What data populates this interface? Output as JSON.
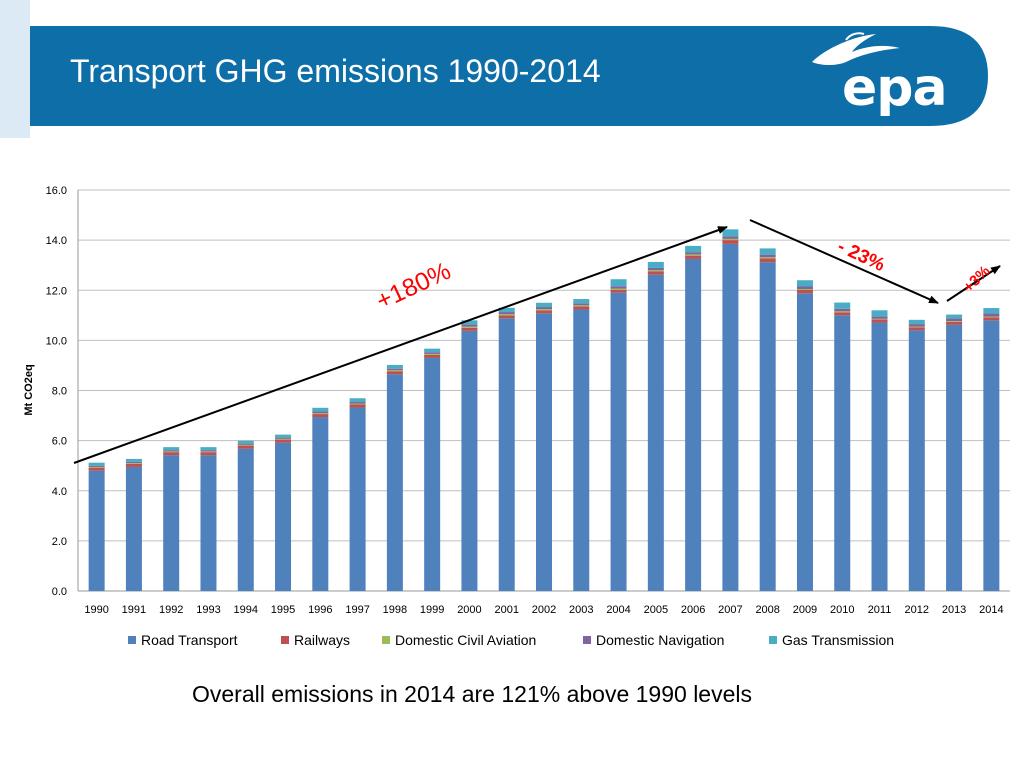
{
  "slide": {
    "title": "Transport GHG emissions 1990-2014",
    "logo_text": "epa",
    "footer_note": "Overall emissions in 2014 are 121% above 1990 levels"
  },
  "colors": {
    "header_blue": "#0e6ea8",
    "header_strip": "#dceaf5",
    "road": "#4f81bd",
    "rail": "#c0504d",
    "aviation": "#9bbb59",
    "navigation": "#8064a2",
    "gas": "#4bacc6",
    "annotation": "#ff0000"
  },
  "annotations": {
    "increase": "+180%",
    "decrease": "- 23%",
    "rebound": "+3%"
  },
  "chart_data": {
    "type": "bar",
    "stacked": true,
    "title": "",
    "xlabel": "",
    "ylabel": "Mt CO2eq",
    "ylim": [
      0,
      16
    ],
    "yticks": [
      "0.0",
      "2.0",
      "4.0",
      "6.0",
      "8.0",
      "10.0",
      "12.0",
      "14.0",
      "16.0"
    ],
    "grid": true,
    "legend_position": "bottom",
    "categories": [
      "1990",
      "1991",
      "1992",
      "1993",
      "1994",
      "1995",
      "1996",
      "1997",
      "1998",
      "1999",
      "2000",
      "2001",
      "2002",
      "2003",
      "2004",
      "2005",
      "2006",
      "2007",
      "2008",
      "2009",
      "2010",
      "2011",
      "2012",
      "2013",
      "2014"
    ],
    "series": [
      {
        "name": "Road Transport",
        "values": [
          4.8,
          4.95,
          5.42,
          5.42,
          5.68,
          5.92,
          6.94,
          7.32,
          8.65,
          9.3,
          10.38,
          10.88,
          11.08,
          11.23,
          11.9,
          12.62,
          13.25,
          13.85,
          13.12,
          11.88,
          11.0,
          10.71,
          10.4,
          10.62,
          10.8
        ]
      },
      {
        "name": "Railways",
        "values": [
          0.12,
          0.12,
          0.12,
          0.12,
          0.12,
          0.12,
          0.12,
          0.12,
          0.12,
          0.12,
          0.12,
          0.12,
          0.12,
          0.12,
          0.12,
          0.13,
          0.13,
          0.15,
          0.15,
          0.13,
          0.12,
          0.12,
          0.12,
          0.12,
          0.12
        ]
      },
      {
        "name": "Domestic Civil Aviation",
        "values": [
          0.03,
          0.03,
          0.03,
          0.03,
          0.03,
          0.03,
          0.04,
          0.04,
          0.04,
          0.04,
          0.05,
          0.05,
          0.05,
          0.05,
          0.05,
          0.05,
          0.05,
          0.05,
          0.05,
          0.04,
          0.04,
          0.03,
          0.03,
          0.03,
          0.03
        ]
      },
      {
        "name": "Domestic Navigation",
        "values": [
          0.05,
          0.05,
          0.05,
          0.05,
          0.05,
          0.05,
          0.06,
          0.06,
          0.06,
          0.06,
          0.08,
          0.08,
          0.08,
          0.08,
          0.09,
          0.09,
          0.09,
          0.1,
          0.1,
          0.1,
          0.1,
          0.1,
          0.1,
          0.1,
          0.12
        ]
      },
      {
        "name": "Gas Transmission",
        "values": [
          0.12,
          0.12,
          0.12,
          0.12,
          0.12,
          0.12,
          0.15,
          0.15,
          0.15,
          0.15,
          0.17,
          0.17,
          0.17,
          0.17,
          0.28,
          0.24,
          0.25,
          0.28,
          0.25,
          0.25,
          0.25,
          0.24,
          0.17,
          0.16,
          0.22
        ]
      }
    ]
  }
}
